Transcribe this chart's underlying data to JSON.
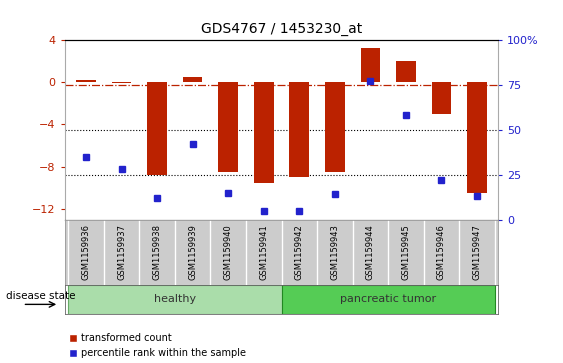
{
  "title": "GDS4767 / 1453230_at",
  "samples": [
    "GSM1159936",
    "GSM1159937",
    "GSM1159938",
    "GSM1159939",
    "GSM1159940",
    "GSM1159941",
    "GSM1159942",
    "GSM1159943",
    "GSM1159944",
    "GSM1159945",
    "GSM1159946",
    "GSM1159947"
  ],
  "bar_values": [
    0.2,
    -0.1,
    -8.8,
    0.5,
    -8.5,
    -9.5,
    -9.0,
    -8.5,
    3.2,
    2.0,
    -3.0,
    -10.5
  ],
  "dot_values_pct": [
    35,
    28,
    12,
    42,
    15,
    5,
    5,
    14,
    77,
    58,
    22,
    13
  ],
  "bar_color": "#bb2200",
  "dot_color": "#2222cc",
  "ylim_left": [
    -13,
    4
  ],
  "ylim_right": [
    0,
    100
  ],
  "yticks_left": [
    4,
    0,
    -4,
    -8,
    -12
  ],
  "yticks_right": [
    100,
    75,
    50,
    25,
    0
  ],
  "groups": [
    {
      "label": "healthy",
      "start": 0,
      "end": 5,
      "color": "#aaddaa"
    },
    {
      "label": "pancreatic tumor",
      "start": 6,
      "end": 11,
      "color": "#55cc55"
    }
  ],
  "disease_state_label": "disease state",
  "legend_items": [
    {
      "label": "transformed count",
      "color": "#bb2200"
    },
    {
      "label": "percentile rank within the sample",
      "color": "#2222cc"
    }
  ],
  "dashdot_hline_pct": 75,
  "dotted_hlines_pct": [
    50,
    25
  ],
  "background_color": "#ffffff",
  "plot_bg_color": "#ffffff",
  "title_fontsize": 10,
  "tick_bg_color": "#cccccc"
}
